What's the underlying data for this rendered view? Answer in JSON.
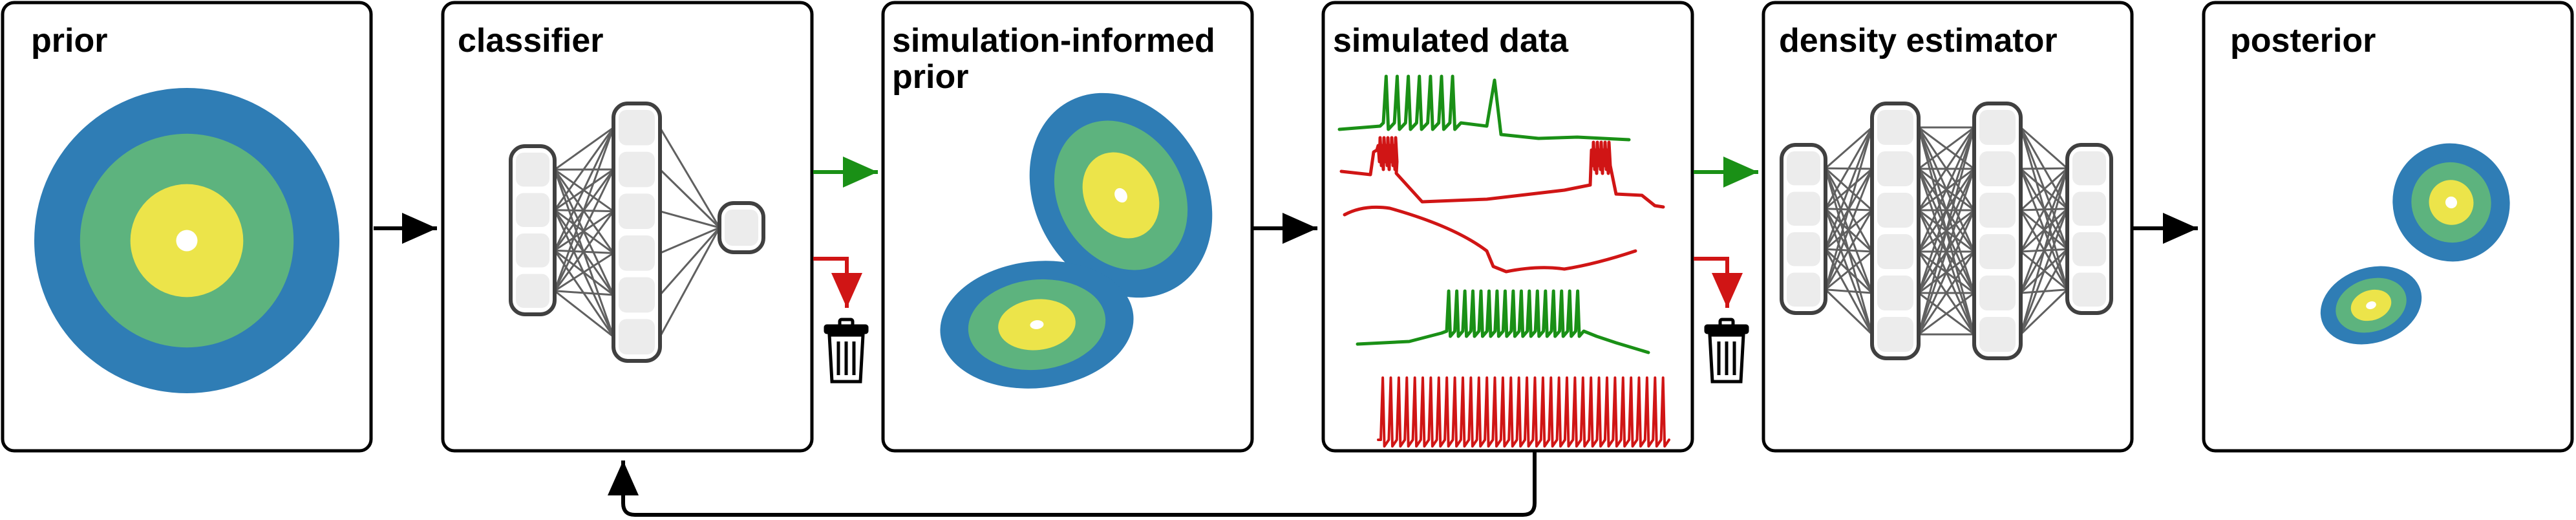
{
  "panels": [
    {
      "id": "prior",
      "title": [
        "prior"
      ]
    },
    {
      "id": "classifier",
      "title": [
        "classifier"
      ]
    },
    {
      "id": "sim-prior",
      "title": [
        "simulation-informed",
        "prior"
      ]
    },
    {
      "id": "sim-data",
      "title": [
        "simulated data"
      ]
    },
    {
      "id": "density",
      "title": [
        "density estimator"
      ]
    },
    {
      "id": "posterior",
      "title": [
        "posterior"
      ]
    }
  ],
  "colors": {
    "panel_border": "#000000",
    "blue": "#2f7db5",
    "green": "#5db37e",
    "yellow": "#ece44a",
    "white": "#ffffff",
    "accept_green": "#1a9016",
    "reject_red": "#d01515",
    "trace_green": "#1a9016",
    "trace_red": "#d01515",
    "node_fill": "#ececec",
    "node_border": "#404040",
    "edge": "#606060"
  },
  "icons": {
    "accept_arrow": "green-arrow-icon",
    "reject_arrow": "red-bent-arrow-icon",
    "discard": "trash-can-icon"
  }
}
